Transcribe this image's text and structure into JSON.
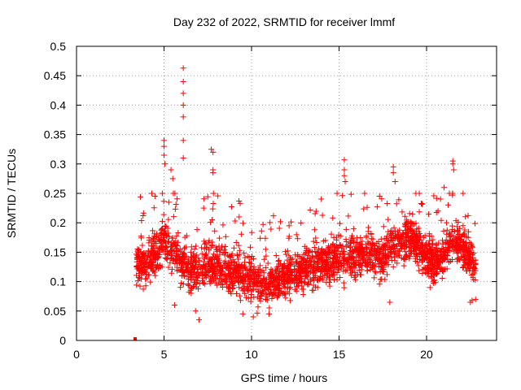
{
  "chart_data": {
    "type": "scatter",
    "title": "Day 232 of 2022, SRMTID for receiver lmmf",
    "xlabel": "GPS time / hours",
    "ylabel": "SRMTID / TECUs",
    "xlim": [
      0,
      24
    ],
    "ylim": [
      0,
      0.5
    ],
    "x_ticks": [
      0,
      5,
      10,
      15,
      20
    ],
    "y_ticks": [
      0,
      0.05,
      0.1,
      0.15,
      0.2,
      0.25,
      0.3,
      0.35,
      0.4,
      0.45,
      0.5
    ],
    "x_tick_labels": [
      "0",
      "5",
      "10",
      "15",
      "20"
    ],
    "y_tick_labels": [
      "0",
      "0.05",
      "0.1",
      "0.15",
      "0.2",
      "0.25",
      "0.3",
      "0.35",
      "0.4",
      "0.45",
      "0.5"
    ],
    "grid": true,
    "marker": "+",
    "series_color": "#ff0000",
    "series": [
      {
        "name": "SRMTID",
        "trend": [
          [
            3.4,
            0.13
          ],
          [
            4.0,
            0.13
          ],
          [
            4.5,
            0.15
          ],
          [
            5.0,
            0.17
          ],
          [
            5.5,
            0.15
          ],
          [
            6.0,
            0.13
          ],
          [
            6.5,
            0.12
          ],
          [
            7.0,
            0.12
          ],
          [
            7.5,
            0.13
          ],
          [
            8.0,
            0.13
          ],
          [
            8.5,
            0.12
          ],
          [
            9.0,
            0.115
          ],
          [
            9.5,
            0.11
          ],
          [
            10.0,
            0.1
          ],
          [
            10.5,
            0.095
          ],
          [
            11.0,
            0.095
          ],
          [
            11.5,
            0.105
          ],
          [
            12.0,
            0.11
          ],
          [
            12.5,
            0.115
          ],
          [
            13.0,
            0.12
          ],
          [
            13.5,
            0.125
          ],
          [
            14.0,
            0.13
          ],
          [
            14.5,
            0.135
          ],
          [
            15.0,
            0.14
          ],
          [
            15.5,
            0.145
          ],
          [
            16.0,
            0.14
          ],
          [
            16.5,
            0.15
          ],
          [
            17.0,
            0.145
          ],
          [
            17.5,
            0.14
          ],
          [
            18.0,
            0.16
          ],
          [
            18.5,
            0.17
          ],
          [
            19.0,
            0.175
          ],
          [
            19.5,
            0.16
          ],
          [
            20.0,
            0.14
          ],
          [
            20.5,
            0.13
          ],
          [
            21.0,
            0.15
          ],
          [
            21.5,
            0.17
          ],
          [
            22.0,
            0.16
          ],
          [
            22.5,
            0.14
          ],
          [
            22.8,
            0.12
          ]
        ],
        "spread": 0.035,
        "n_points": 2600,
        "highlights": [
          [
            5.0,
            0.34
          ],
          [
            5.0,
            0.33
          ],
          [
            5.0,
            0.315
          ],
          [
            5.05,
            0.3
          ],
          [
            5.4,
            0.29
          ],
          [
            5.5,
            0.275
          ],
          [
            6.1,
            0.463
          ],
          [
            6.1,
            0.44
          ],
          [
            6.1,
            0.42
          ],
          [
            6.1,
            0.4
          ],
          [
            6.1,
            0.38
          ],
          [
            6.1,
            0.34
          ],
          [
            6.1,
            0.31
          ],
          [
            7.7,
            0.325
          ],
          [
            7.8,
            0.32
          ],
          [
            7.8,
            0.29
          ],
          [
            7.8,
            0.285
          ],
          [
            15.3,
            0.307
          ],
          [
            15.3,
            0.29
          ],
          [
            15.3,
            0.28
          ],
          [
            15.35,
            0.27
          ],
          [
            18.1,
            0.295
          ],
          [
            18.1,
            0.285
          ],
          [
            18.2,
            0.27
          ],
          [
            21.5,
            0.305
          ],
          [
            21.5,
            0.3
          ],
          [
            21.55,
            0.29
          ],
          [
            21.0,
            0.26
          ],
          [
            10.1,
            0.04
          ],
          [
            11.0,
            0.045
          ],
          [
            6.8,
            0.05
          ],
          [
            7.0,
            0.035
          ],
          [
            17.9,
            0.065
          ],
          [
            22.5,
            0.065
          ],
          [
            22.6,
            0.068
          ],
          [
            22.8,
            0.07
          ],
          [
            5.6,
            0.06
          ],
          [
            9.5,
            0.045
          ]
        ],
        "outlier_x": 3.35,
        "outlier_y": 0.0
      }
    ]
  }
}
